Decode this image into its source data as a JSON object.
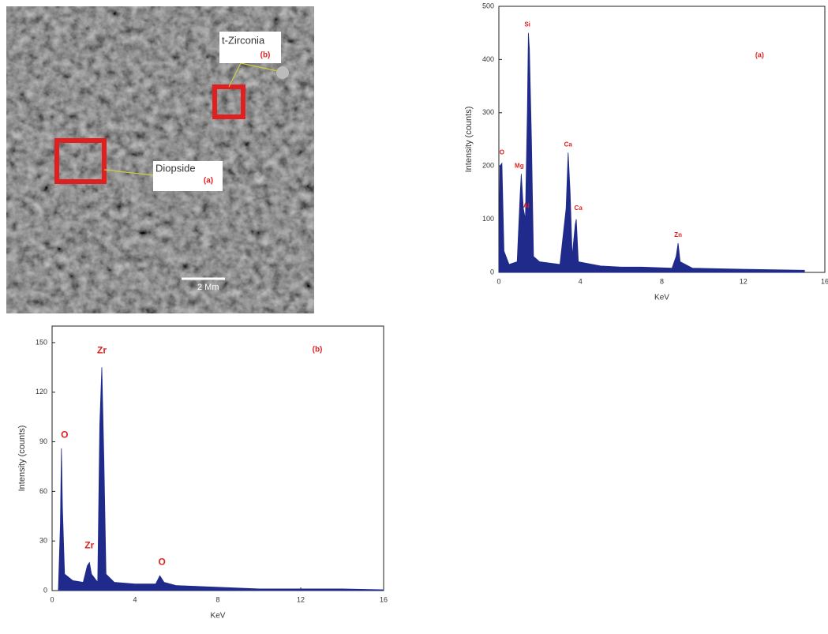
{
  "image": {
    "zirconia_label": "t-Zirconia",
    "zirconia_tag": "(b)",
    "diopside_label": "Diopside",
    "diopside_tag": "(a)",
    "scale_bar": "2 Μm"
  },
  "chart_data": [
    {
      "type": "area",
      "title": "(a)",
      "y_label": "Intensity (counts)",
      "x_label": "KeV",
      "color": "#1f2a8a",
      "xlim": [
        0,
        16
      ],
      "xticks": [
        0,
        4,
        8,
        12,
        16
      ],
      "ylim": [
        0,
        500
      ],
      "yticks": [
        0,
        100,
        200,
        300,
        400,
        500
      ],
      "x": [
        0,
        0.05,
        0.15,
        0.25,
        0.5,
        0.9,
        1.05,
        1.1,
        1.2,
        1.3,
        1.4,
        1.45,
        1.5,
        1.6,
        1.7,
        2.0,
        3.0,
        3.3,
        3.4,
        3.5,
        3.6,
        3.75,
        3.8,
        3.9,
        5,
        6,
        7,
        8.5,
        8.7,
        8.8,
        8.9,
        9.5,
        12,
        15,
        15
      ],
      "values": [
        0,
        200,
        205,
        40,
        15,
        20,
        150,
        185,
        120,
        100,
        300,
        450,
        420,
        250,
        30,
        20,
        15,
        120,
        225,
        150,
        30,
        90,
        100,
        20,
        12,
        10,
        10,
        8,
        30,
        55,
        20,
        8,
        6,
        4,
        0
      ],
      "annotations": [
        {
          "text": "O",
          "x": 0.15,
          "y": 225
        },
        {
          "text": "Mg",
          "x": 1.0,
          "y": 200
        },
        {
          "text": "Al",
          "x": 1.35,
          "y": 125
        },
        {
          "text": "Si",
          "x": 1.4,
          "y": 465
        },
        {
          "text": "Ca",
          "x": 3.4,
          "y": 240
        },
        {
          "text": "Ca",
          "x": 3.9,
          "y": 120
        },
        {
          "text": "Zn",
          "x": 8.8,
          "y": 70
        }
      ]
    },
    {
      "type": "area",
      "title": "(b)",
      "y_label": "Intensity (counts)",
      "x_label": "KeV",
      "color": "#1f2a8a",
      "xlim": [
        0,
        16
      ],
      "xticks": [
        0,
        4,
        8,
        12,
        16
      ],
      "ylim": [
        0,
        160
      ],
      "yticks": [
        0,
        30,
        60,
        90,
        120,
        150
      ],
      "x": [
        0.3,
        0.4,
        0.45,
        0.5,
        0.6,
        1.0,
        1.5,
        1.7,
        1.8,
        1.9,
        2.2,
        2.3,
        2.4,
        2.5,
        2.6,
        3,
        4,
        5,
        5.2,
        5.4,
        6,
        8,
        10,
        14,
        16
      ],
      "values": [
        0,
        40,
        86,
        50,
        10,
        6,
        5,
        15,
        17,
        10,
        5,
        100,
        135,
        80,
        10,
        5,
        4,
        4,
        9,
        5,
        3,
        2,
        1,
        1,
        0.5
      ],
      "annotations": [
        {
          "text": "O",
          "x": 0.6,
          "y": 94
        },
        {
          "text": "Zr",
          "x": 2.4,
          "y": 145
        },
        {
          "text": "Zr",
          "x": 1.8,
          "y": 27
        },
        {
          "text": "O",
          "x": 5.3,
          "y": 17
        }
      ]
    }
  ]
}
